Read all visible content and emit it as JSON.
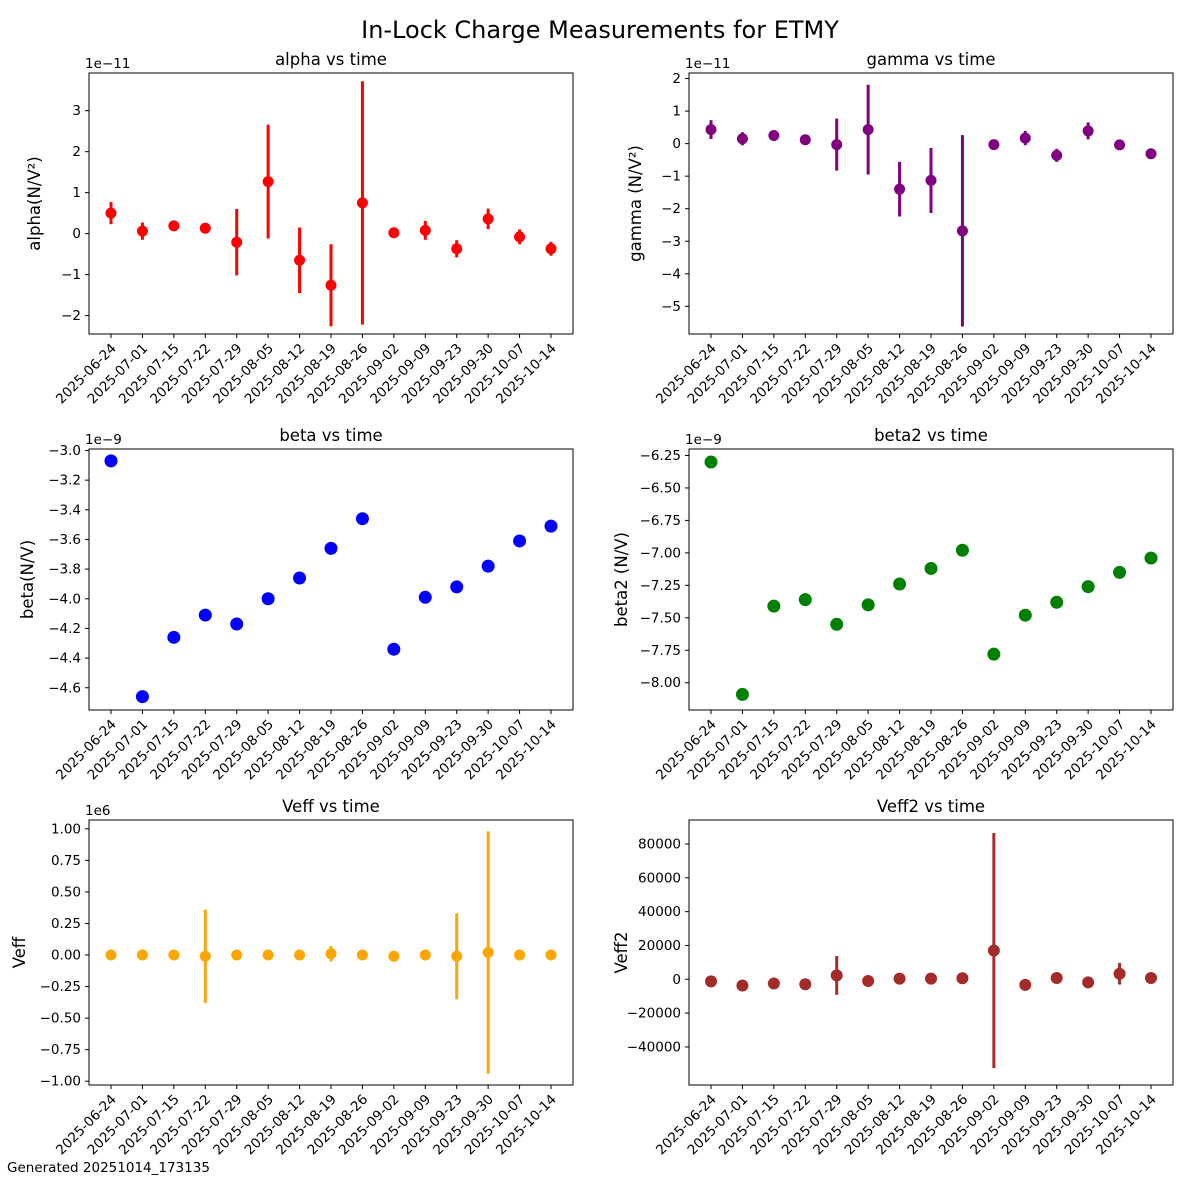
{
  "figure": {
    "title": "In-Lock Charge Measurements for ETMY",
    "footer": "Generated 20251014_173135",
    "background": "#ffffff"
  },
  "chart_data": [
    {
      "id": "alpha",
      "type": "scatter",
      "title": "alpha vs time",
      "ylabel": "alpha(N/V²)",
      "offset_label": "1e−11",
      "color": "#ff0000",
      "marker_radius": 5.5,
      "legend": "none",
      "grid": false,
      "ylim": [
        -2.45,
        3.92
      ],
      "ytick_values": [
        3,
        2,
        1,
        0,
        -1,
        -2
      ],
      "ytick_labels": [
        "3",
        "2",
        "1",
        "0",
        "−1",
        "−2"
      ],
      "categories": [
        "2025-06-24",
        "2025-07-01",
        "2025-07-15",
        "2025-07-22",
        "2025-07-29",
        "2025-08-05",
        "2025-08-12",
        "2025-08-19",
        "2025-08-26",
        "2025-09-02",
        "2025-09-09",
        "2025-09-23",
        "2025-09-30",
        "2025-10-07",
        "2025-10-14"
      ],
      "values": [
        0.5,
        0.06,
        0.19,
        0.13,
        -0.21,
        1.27,
        -0.65,
        -1.26,
        0.75,
        0.02,
        0.08,
        -0.37,
        0.36,
        -0.08,
        -0.37
      ],
      "errors": [
        0.27,
        0.21,
        0.12,
        0.1,
        0.81,
        1.39,
        0.8,
        1.0,
        2.97,
        0.07,
        0.23,
        0.21,
        0.25,
        0.18,
        0.17
      ]
    },
    {
      "id": "gamma",
      "type": "scatter",
      "title": "gamma vs time",
      "ylabel": "gamma (N/V²)",
      "offset_label": "1e−11",
      "color": "#800080",
      "marker_radius": 5.5,
      "legend": "none",
      "grid": false,
      "ylim": [
        -5.85,
        2.17
      ],
      "ytick_values": [
        2,
        1,
        0,
        -1,
        -2,
        -3,
        -4,
        -5
      ],
      "ytick_labels": [
        "2",
        "1",
        "0",
        "−1",
        "−2",
        "−3",
        "−4",
        "−5"
      ],
      "categories": [
        "2025-06-24",
        "2025-07-01",
        "2025-07-15",
        "2025-07-22",
        "2025-07-29",
        "2025-08-05",
        "2025-08-12",
        "2025-08-19",
        "2025-08-26",
        "2025-09-02",
        "2025-09-09",
        "2025-09-23",
        "2025-09-30",
        "2025-10-07",
        "2025-10-14"
      ],
      "values": [
        0.43,
        0.15,
        0.25,
        0.12,
        -0.03,
        0.43,
        -1.4,
        -1.13,
        -2.68,
        -0.03,
        0.17,
        -0.36,
        0.39,
        -0.04,
        -0.31
      ],
      "errors": [
        0.29,
        0.2,
        0.12,
        0.1,
        0.8,
        1.38,
        0.84,
        1.0,
        2.94,
        0.1,
        0.22,
        0.2,
        0.26,
        0.15,
        0.12
      ]
    },
    {
      "id": "beta",
      "type": "scatter",
      "title": "beta vs time",
      "ylabel": "beta(N/V)",
      "offset_label": "1e−9",
      "color": "#0000ff",
      "marker_radius": 6.5,
      "legend": "none",
      "grid": false,
      "ylim": [
        -4.75,
        -2.99
      ],
      "ytick_values": [
        -3.0,
        -3.2,
        -3.4,
        -3.6,
        -3.8,
        -4.0,
        -4.2,
        -4.4,
        -4.6
      ],
      "ytick_labels": [
        "−3.0",
        "−3.2",
        "−3.4",
        "−3.6",
        "−3.8",
        "−4.0",
        "−4.2",
        "−4.4",
        "−4.6"
      ],
      "categories": [
        "2025-06-24",
        "2025-07-01",
        "2025-07-15",
        "2025-07-22",
        "2025-07-29",
        "2025-08-05",
        "2025-08-12",
        "2025-08-19",
        "2025-08-26",
        "2025-09-02",
        "2025-09-09",
        "2025-09-23",
        "2025-09-30",
        "2025-10-07",
        "2025-10-14"
      ],
      "values": [
        -3.07,
        -4.66,
        -4.26,
        -4.11,
        -4.17,
        -4.0,
        -3.86,
        -3.66,
        -3.46,
        -4.34,
        -3.99,
        -3.92,
        -3.78,
        -3.61,
        -3.51
      ],
      "errors": null
    },
    {
      "id": "beta2",
      "type": "scatter",
      "title": "beta2 vs time",
      "ylabel": "beta2 (N/V)",
      "offset_label": "1e−9",
      "color": "#008000",
      "marker_radius": 6.5,
      "legend": "none",
      "grid": false,
      "ylim": [
        -8.21,
        -6.2
      ],
      "ytick_values": [
        -6.25,
        -6.5,
        -6.75,
        -7.0,
        -7.25,
        -7.5,
        -7.75,
        -8.0
      ],
      "ytick_labels": [
        "−6.25",
        "−6.50",
        "−6.75",
        "−7.00",
        "−7.25",
        "−7.50",
        "−7.75",
        "−8.00"
      ],
      "categories": [
        "2025-06-24",
        "2025-07-01",
        "2025-07-15",
        "2025-07-22",
        "2025-07-29",
        "2025-08-05",
        "2025-08-12",
        "2025-08-19",
        "2025-08-26",
        "2025-09-02",
        "2025-09-09",
        "2025-09-23",
        "2025-09-30",
        "2025-10-07",
        "2025-10-14"
      ],
      "values": [
        -6.3,
        -8.09,
        -7.41,
        -7.36,
        -7.55,
        -7.4,
        -7.24,
        -7.12,
        -6.98,
        -7.78,
        -7.48,
        -7.38,
        -7.26,
        -7.15,
        -7.04
      ],
      "errors": null
    },
    {
      "id": "veff",
      "type": "scatter",
      "title": "Veff vs time",
      "ylabel": "Veff",
      "offset_label": "1e6",
      "color": "#ffa500",
      "marker_radius": 5.5,
      "legend": "none",
      "grid": false,
      "ylim": [
        -1.03,
        1.07
      ],
      "ytick_values": [
        1.0,
        0.75,
        0.5,
        0.25,
        0.0,
        -0.25,
        -0.5,
        -0.75,
        -1.0
      ],
      "ytick_labels": [
        "1.00",
        "0.75",
        "0.50",
        "0.25",
        "0.00",
        "−0.25",
        "−0.50",
        "−0.75",
        "−1.00"
      ],
      "categories": [
        "2025-06-24",
        "2025-07-01",
        "2025-07-15",
        "2025-07-22",
        "2025-07-29",
        "2025-08-05",
        "2025-08-12",
        "2025-08-19",
        "2025-08-26",
        "2025-09-02",
        "2025-09-09",
        "2025-09-23",
        "2025-09-30",
        "2025-10-07",
        "2025-10-14"
      ],
      "values": [
        0.0,
        0.0,
        0.0,
        -0.01,
        0.0,
        0.0,
        0.0,
        0.01,
        0.0,
        -0.01,
        0.0,
        -0.01,
        0.02,
        0.0,
        0.0
      ],
      "errors": [
        0.01,
        0.01,
        0.01,
        0.37,
        0.01,
        0.01,
        0.01,
        0.06,
        0.01,
        0.01,
        0.01,
        0.34,
        0.96,
        0.01,
        0.01
      ]
    },
    {
      "id": "veff2",
      "type": "scatter",
      "title": "Veff2 vs time",
      "ylabel": "Veff2",
      "offset_label": null,
      "color": "#a52a2a",
      "marker_radius": 6,
      "legend": "none",
      "grid": false,
      "ylim": [
        -62500,
        94200
      ],
      "ytick_values": [
        80000,
        60000,
        40000,
        20000,
        0,
        -20000,
        -40000
      ],
      "ytick_labels": [
        "80000",
        "60000",
        "40000",
        "20000",
        "0",
        "−20000",
        "−40000"
      ],
      "categories": [
        "2025-06-24",
        "2025-07-01",
        "2025-07-15",
        "2025-07-22",
        "2025-07-29",
        "2025-08-05",
        "2025-08-12",
        "2025-08-19",
        "2025-08-26",
        "2025-09-02",
        "2025-09-09",
        "2025-09-23",
        "2025-09-30",
        "2025-10-07",
        "2025-10-14"
      ],
      "values": [
        -1200,
        -3700,
        -2500,
        -2900,
        2300,
        -1000,
        400,
        400,
        600,
        17000,
        -3300,
        800,
        -1800,
        3300,
        800
      ],
      "errors": [
        800,
        900,
        700,
        800,
        11500,
        700,
        500,
        500,
        600,
        69500,
        2500,
        600,
        700,
        6400,
        600
      ]
    }
  ]
}
